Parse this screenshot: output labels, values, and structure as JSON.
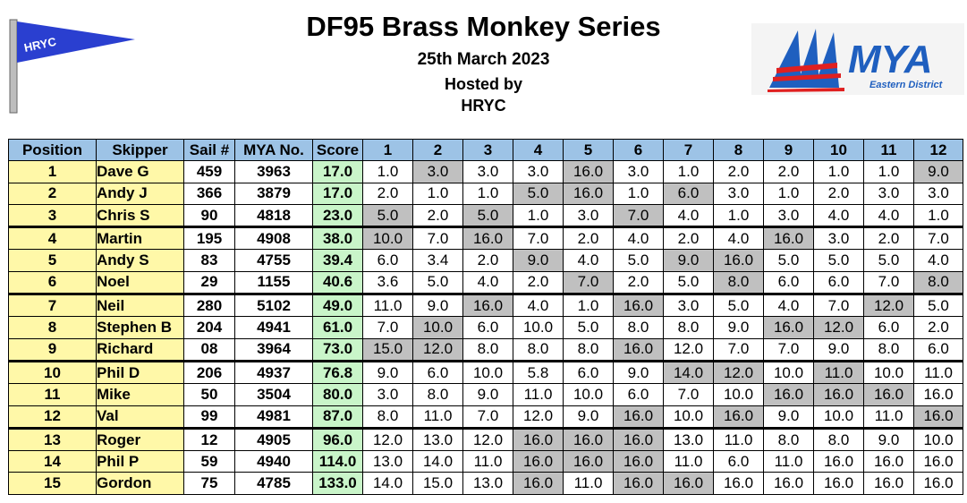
{
  "header": {
    "title": "DF95 Brass Monkey Series",
    "date": "25th March 2023",
    "hosted_line1": "Hosted by",
    "hosted_line2": "HRYC"
  },
  "logos": {
    "club_flag_text": "HRYC",
    "mya_text": "MYA",
    "mya_subtext": "Eastern District"
  },
  "colors": {
    "header_bg": "#9dc3e6",
    "name_bg": "#fff8a8",
    "score_bg": "#c9f5c9",
    "discard_bg": "#c0c0c0",
    "flag_blue": "#2a3fd0",
    "mya_blue": "#1f5fbf",
    "mya_red": "#e02020"
  },
  "table": {
    "columns": [
      "Position",
      "Skipper",
      "Sail #",
      "MYA No.",
      "Score",
      "1",
      "2",
      "3",
      "4",
      "5",
      "6",
      "7",
      "8",
      "9",
      "10",
      "11",
      "12"
    ],
    "rows": [
      {
        "position": "1",
        "skipper": "Dave G",
        "sail": "459",
        "mya": "3963",
        "score": "17.0",
        "races": [
          "1.0",
          "3.0",
          "3.0",
          "3.0",
          "16.0",
          "3.0",
          "1.0",
          "2.0",
          "2.0",
          "1.0",
          "1.0",
          "9.0"
        ],
        "discards": [
          1,
          4,
          11
        ]
      },
      {
        "position": "2",
        "skipper": "Andy J",
        "sail": "366",
        "mya": "3879",
        "score": "17.0",
        "races": [
          "2.0",
          "1.0",
          "1.0",
          "5.0",
          "16.0",
          "1.0",
          "6.0",
          "3.0",
          "1.0",
          "2.0",
          "3.0",
          "3.0"
        ],
        "discards": [
          3,
          4,
          6
        ]
      },
      {
        "position": "3",
        "skipper": "Chris S",
        "sail": "90",
        "mya": "4818",
        "score": "23.0",
        "races": [
          "5.0",
          "2.0",
          "5.0",
          "1.0",
          "3.0",
          "7.0",
          "4.0",
          "1.0",
          "3.0",
          "4.0",
          "4.0",
          "1.0"
        ],
        "discards": [
          0,
          2,
          5
        ]
      },
      {
        "position": "4",
        "skipper": "Martin",
        "sail": "195",
        "mya": "4908",
        "score": "38.0",
        "races": [
          "10.0",
          "7.0",
          "16.0",
          "7.0",
          "2.0",
          "4.0",
          "2.0",
          "4.0",
          "16.0",
          "3.0",
          "2.0",
          "7.0"
        ],
        "discards": [
          0,
          2,
          8
        ]
      },
      {
        "position": "5",
        "skipper": "Andy S",
        "sail": "83",
        "mya": "4755",
        "score": "39.4",
        "races": [
          "6.0",
          "3.4",
          "2.0",
          "9.0",
          "4.0",
          "5.0",
          "9.0",
          "16.0",
          "5.0",
          "5.0",
          "5.0",
          "4.0"
        ],
        "discards": [
          3,
          6,
          7
        ]
      },
      {
        "position": "6",
        "skipper": "Noel",
        "sail": "29",
        "mya": "1155",
        "score": "40.6",
        "races": [
          "3.6",
          "5.0",
          "4.0",
          "2.0",
          "7.0",
          "2.0",
          "5.0",
          "8.0",
          "6.0",
          "6.0",
          "7.0",
          "8.0"
        ],
        "discards": [
          4,
          7,
          11
        ]
      },
      {
        "position": "7",
        "skipper": "Neil",
        "sail": "280",
        "mya": "5102",
        "score": "49.0",
        "races": [
          "11.0",
          "9.0",
          "16.0",
          "4.0",
          "1.0",
          "16.0",
          "3.0",
          "5.0",
          "4.0",
          "7.0",
          "12.0",
          "5.0"
        ],
        "discards": [
          2,
          5,
          10
        ]
      },
      {
        "position": "8",
        "skipper": "Stephen B",
        "sail": "204",
        "mya": "4941",
        "score": "61.0",
        "races": [
          "7.0",
          "10.0",
          "6.0",
          "10.0",
          "5.0",
          "8.0",
          "8.0",
          "9.0",
          "16.0",
          "12.0",
          "6.0",
          "2.0"
        ],
        "discards": [
          1,
          8,
          9
        ]
      },
      {
        "position": "9",
        "skipper": "Richard",
        "sail": "08",
        "mya": "3964",
        "score": "73.0",
        "races": [
          "15.0",
          "12.0",
          "8.0",
          "8.0",
          "8.0",
          "16.0",
          "12.0",
          "7.0",
          "7.0",
          "9.0",
          "8.0",
          "6.0"
        ],
        "discards": [
          0,
          1,
          5
        ]
      },
      {
        "position": "10",
        "skipper": "Phil D",
        "sail": "206",
        "mya": "4937",
        "score": "76.8",
        "races": [
          "9.0",
          "6.0",
          "10.0",
          "5.8",
          "6.0",
          "9.0",
          "14.0",
          "12.0",
          "10.0",
          "11.0",
          "10.0",
          "11.0"
        ],
        "discards": [
          6,
          7,
          9
        ]
      },
      {
        "position": "11",
        "skipper": "Mike",
        "sail": "50",
        "mya": "3504",
        "score": "80.0",
        "races": [
          "3.0",
          "8.0",
          "9.0",
          "11.0",
          "10.0",
          "6.0",
          "7.0",
          "10.0",
          "16.0",
          "16.0",
          "16.0",
          "16.0"
        ],
        "discards": [
          8,
          9,
          10
        ]
      },
      {
        "position": "12",
        "skipper": "Val",
        "sail": "99",
        "mya": "4981",
        "score": "87.0",
        "races": [
          "8.0",
          "11.0",
          "7.0",
          "12.0",
          "9.0",
          "16.0",
          "10.0",
          "16.0",
          "9.0",
          "10.0",
          "11.0",
          "16.0"
        ],
        "discards": [
          5,
          7,
          11
        ]
      },
      {
        "position": "13",
        "skipper": "Roger",
        "sail": "12",
        "mya": "4905",
        "score": "96.0",
        "races": [
          "12.0",
          "13.0",
          "12.0",
          "16.0",
          "16.0",
          "16.0",
          "13.0",
          "11.0",
          "8.0",
          "8.0",
          "9.0",
          "10.0"
        ],
        "discards": [
          3,
          4,
          5
        ]
      },
      {
        "position": "14",
        "skipper": "Phil P",
        "sail": "59",
        "mya": "4940",
        "score": "114.0",
        "races": [
          "13.0",
          "14.0",
          "11.0",
          "16.0",
          "16.0",
          "16.0",
          "11.0",
          "6.0",
          "11.0",
          "16.0",
          "16.0",
          "16.0"
        ],
        "discards": [
          3,
          4,
          5
        ]
      },
      {
        "position": "15",
        "skipper": "Gordon",
        "sail": "75",
        "mya": "4785",
        "score": "133.0",
        "races": [
          "14.0",
          "15.0",
          "13.0",
          "16.0",
          "11.0",
          "16.0",
          "16.0",
          "16.0",
          "16.0",
          "16.0",
          "16.0",
          "16.0"
        ],
        "discards": [
          3,
          5,
          6
        ]
      }
    ]
  }
}
